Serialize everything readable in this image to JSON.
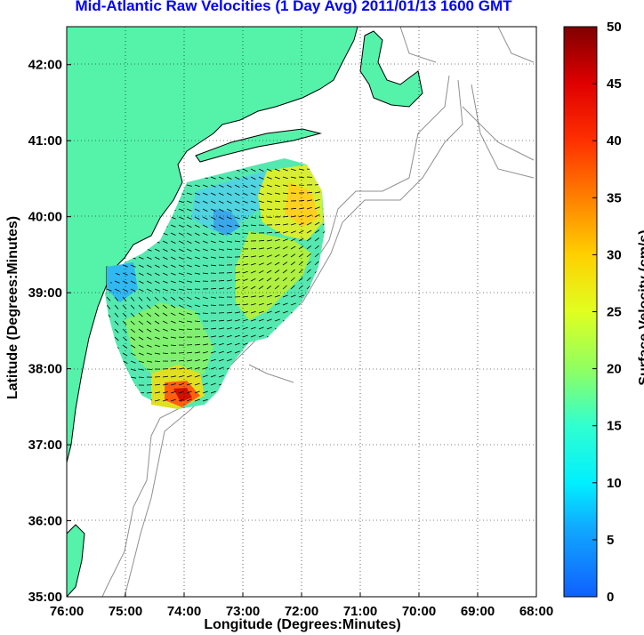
{
  "title": "Mid-Atlantic Raw Velocities (1 Day Avg) 2011/01/13 1600 GMT",
  "xlabel": "Longitude (Degrees:Minutes)",
  "ylabel": "Latitude (Degrees:Minutes)",
  "colorbar": {
    "label": "Surface Velocity (cm/s)",
    "ticks": [
      "0",
      "5",
      "10",
      "15",
      "20",
      "25",
      "30",
      "35",
      "40",
      "45",
      "50"
    ],
    "range": [
      0,
      50
    ]
  },
  "axes": {
    "x_ticks": [
      "76:00",
      "75:00",
      "74:00",
      "73:00",
      "72:00",
      "71:00",
      "70:00",
      "69:00",
      "68:00"
    ],
    "y_ticks": [
      "35:00",
      "36:00",
      "37:00",
      "38:00",
      "39:00",
      "40:00",
      "41:00",
      "42:00"
    ],
    "x_range": [
      -76,
      -68
    ],
    "y_range": [
      35,
      42.5
    ]
  },
  "colors": {
    "land": "#55f2aa",
    "coast": "#000000",
    "bathymetry": "#909090",
    "title": "#0000ff"
  }
}
